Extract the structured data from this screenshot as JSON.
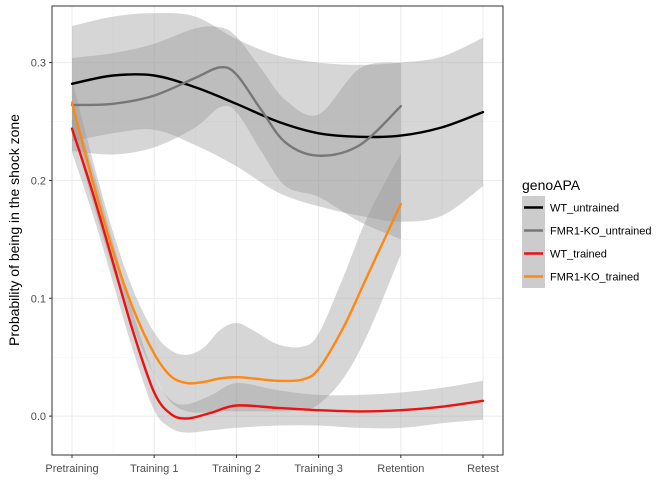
{
  "chart_data": {
    "type": "line",
    "title": "",
    "xlabel": "",
    "ylabel": "Probability of being in the shock zone",
    "categories": [
      "Pretraining",
      "Training 1",
      "Training 2",
      "Training 3",
      "Retention",
      "Retest"
    ],
    "ylim": [
      -0.033,
      0.348
    ],
    "yticks": [
      0.0,
      0.1,
      0.2,
      0.3
    ],
    "ytick_labels": [
      "0.0",
      "0.1",
      "0.2",
      "0.3"
    ],
    "grid": true,
    "legend": {
      "title": "genoAPA",
      "position": "right"
    },
    "band_color": "#999999",
    "series": [
      {
        "name": "WT_untrained",
        "color": "#000000",
        "x": [
          0,
          0.5,
          1,
          1.5,
          2,
          2.5,
          3,
          3.5,
          4,
          4.5,
          5
        ],
        "y": [
          0.282,
          0.289,
          0.289,
          0.279,
          0.265,
          0.25,
          0.24,
          0.237,
          0.238,
          0.245,
          0.258
        ],
        "lower": [
          0.233,
          0.24,
          0.243,
          0.23,
          0.212,
          0.19,
          0.178,
          0.17,
          0.165,
          0.17,
          0.195
        ],
        "upper": [
          0.331,
          0.339,
          0.342,
          0.339,
          0.32,
          0.306,
          0.3,
          0.298,
          0.3,
          0.305,
          0.321
        ]
      },
      {
        "name": "FMR1-KO_untrained",
        "color": "#777777",
        "x": [
          0,
          0.5,
          1,
          1.5,
          1.8,
          2,
          2.3,
          2.6,
          3,
          3.5,
          4
        ],
        "y": [
          0.264,
          0.265,
          0.272,
          0.287,
          0.296,
          0.29,
          0.26,
          0.232,
          0.221,
          0.23,
          0.263
        ],
        "lower": [
          0.225,
          0.222,
          0.228,
          0.245,
          0.262,
          0.258,
          0.225,
          0.195,
          0.186,
          0.165,
          0.15
        ],
        "upper": [
          0.304,
          0.308,
          0.316,
          0.329,
          0.33,
          0.322,
          0.295,
          0.268,
          0.256,
          0.295,
          0.3
        ]
      },
      {
        "name": "WT_trained",
        "color": "#ee1111",
        "x": [
          0,
          0.25,
          0.5,
          0.75,
          1,
          1.2,
          1.4,
          1.7,
          2,
          2.5,
          3,
          3.5,
          4,
          4.5,
          5
        ],
        "y": [
          0.244,
          0.19,
          0.13,
          0.07,
          0.02,
          0.002,
          -0.002,
          0.003,
          0.009,
          0.007,
          0.005,
          0.004,
          0.005,
          0.008,
          0.013
        ],
        "lower": [
          0.224,
          0.172,
          0.113,
          0.054,
          0.005,
          -0.01,
          -0.014,
          -0.012,
          -0.01,
          -0.008,
          -0.008,
          -0.01,
          -0.01,
          -0.006,
          -0.003
        ],
        "upper": [
          0.264,
          0.21,
          0.147,
          0.086,
          0.035,
          0.014,
          0.01,
          0.018,
          0.028,
          0.022,
          0.018,
          0.018,
          0.02,
          0.024,
          0.03
        ]
      },
      {
        "name": "FMR1-KO_trained",
        "color": "#ff8811",
        "x": [
          0,
          0.25,
          0.5,
          0.75,
          1,
          1.2,
          1.4,
          1.6,
          1.8,
          2,
          2.2,
          2.5,
          2.8,
          3,
          3.3,
          3.6,
          4
        ],
        "y": [
          0.266,
          0.2,
          0.14,
          0.09,
          0.053,
          0.034,
          0.028,
          0.029,
          0.032,
          0.033,
          0.032,
          0.03,
          0.031,
          0.04,
          0.075,
          0.12,
          0.18
        ],
        "lower": [
          0.246,
          0.182,
          0.124,
          0.074,
          0.035,
          0.012,
          0.004,
          0.003,
          0.004,
          0.004,
          0.004,
          0.004,
          0.005,
          0.01,
          0.032,
          0.07,
          0.137
        ],
        "upper": [
          0.286,
          0.218,
          0.156,
          0.106,
          0.071,
          0.056,
          0.052,
          0.058,
          0.073,
          0.079,
          0.073,
          0.061,
          0.059,
          0.07,
          0.118,
          0.17,
          0.223
        ]
      }
    ]
  }
}
